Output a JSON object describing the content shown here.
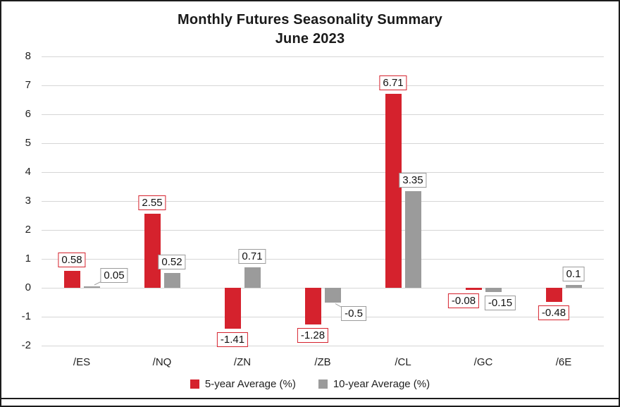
{
  "chart_data": {
    "type": "bar",
    "title": "Monthly Futures Seasonality Summary",
    "subtitle": "June 2023",
    "categories": [
      "/ES",
      "/NQ",
      "/ZN",
      "/ZB",
      "/CL",
      "/GC",
      "/6E"
    ],
    "series": [
      {
        "name": "5-year Average (%)",
        "color": "#d5222d",
        "values": [
          0.58,
          2.55,
          -1.41,
          -1.28,
          6.71,
          -0.08,
          -0.48
        ]
      },
      {
        "name": "10-year Average (%)",
        "color": "#9b9b9b",
        "values": [
          0.05,
          0.52,
          0.71,
          -0.5,
          3.35,
          -0.15,
          0.1
        ]
      }
    ],
    "data_labels": [
      [
        "0.58",
        "2.55",
        "-1.41",
        "-1.28",
        "6.71",
        "-0.08",
        "-0.48"
      ],
      [
        "0.05",
        "0.52",
        "0.71",
        "-0.5",
        "3.35",
        "-0.15",
        "0.1"
      ]
    ],
    "ylim": [
      -2,
      8
    ],
    "yticks": [
      8,
      7,
      6,
      5,
      4,
      3,
      2,
      1,
      0,
      -1,
      -2
    ],
    "grid": "horizontal",
    "legend_position": "bottom",
    "label_layout_hints": {
      "s1_i0": {
        "dx": 32,
        "leader": true
      },
      "s1_i3": {
        "dx": 30,
        "leader": true
      },
      "s0_i5": {
        "dx": -14
      },
      "s1_i5": {
        "dx": 10
      }
    },
    "colors": {
      "grid": "#d6d6d6",
      "frame_border": "#1c1c1c",
      "text": "#1f1f1f",
      "series_5yr": "#d5222d",
      "series_10yr": "#9b9b9b"
    }
  }
}
